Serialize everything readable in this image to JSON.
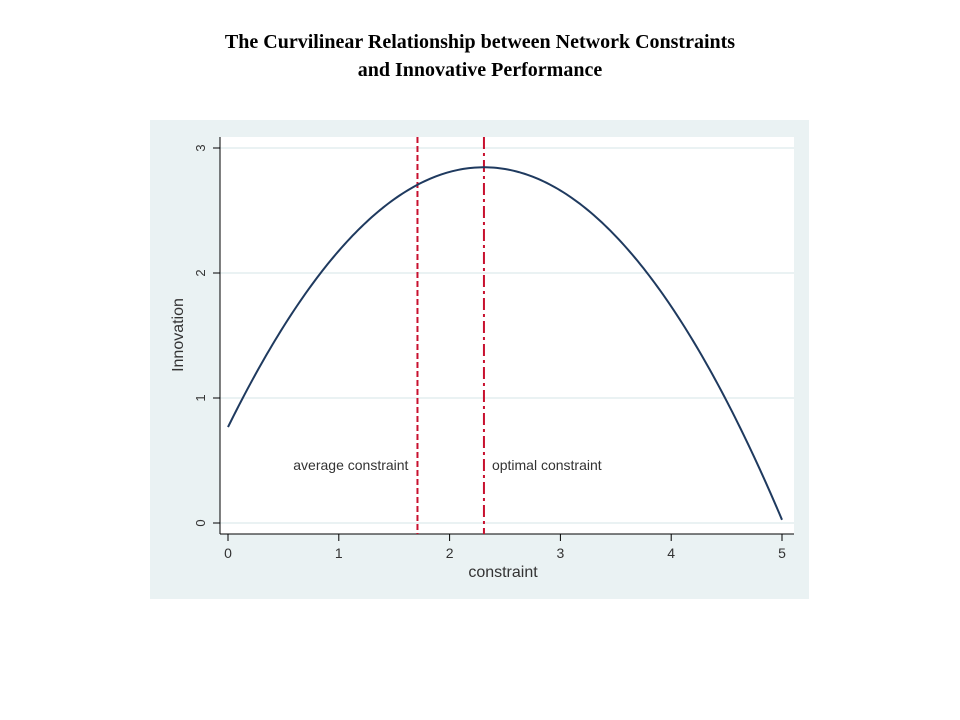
{
  "title": {
    "line1": "The Curvilinear Relationship between Network Constraints",
    "line2": "and Innovative Performance"
  },
  "chart_data": {
    "type": "line",
    "xlabel": "constraint",
    "ylabel": "Innovation",
    "xlim": [
      0,
      5
    ],
    "ylim": [
      0,
      3
    ],
    "xticks": [
      "0",
      "1",
      "2",
      "3",
      "4",
      "5"
    ],
    "yticks": [
      "0",
      "1",
      "2",
      "3"
    ],
    "grid": true,
    "series": [
      {
        "curve": "quadratic",
        "color": "#1f3a5f",
        "points": [
          {
            "x": 0,
            "y": 0.75
          },
          {
            "x": 0.5,
            "y": 1.59
          },
          {
            "x": 1,
            "y": 2.19
          },
          {
            "x": 1.5,
            "y": 2.59
          },
          {
            "x": 2,
            "y": 2.8
          },
          {
            "x": 2.31,
            "y": 2.84
          },
          {
            "x": 2.5,
            "y": 2.82
          },
          {
            "x": 3,
            "y": 2.66
          },
          {
            "x": 3.5,
            "y": 2.3
          },
          {
            "x": 4,
            "y": 1.74
          },
          {
            "x": 4.5,
            "y": 0.98
          },
          {
            "x": 5,
            "y": 0.02
          }
        ]
      }
    ],
    "reference_lines": [
      {
        "x": 1.71,
        "label": "average constraint",
        "style": "dashed",
        "color": "#c8102e",
        "label_side": "left"
      },
      {
        "x": 2.31,
        "label": "optimal constraint",
        "style": "dashdot",
        "color": "#c8102e",
        "label_side": "right"
      }
    ],
    "plot_background": "#eaf2f3",
    "inner_background": "#ffffff",
    "gridline_color": "#eaf2f3"
  }
}
